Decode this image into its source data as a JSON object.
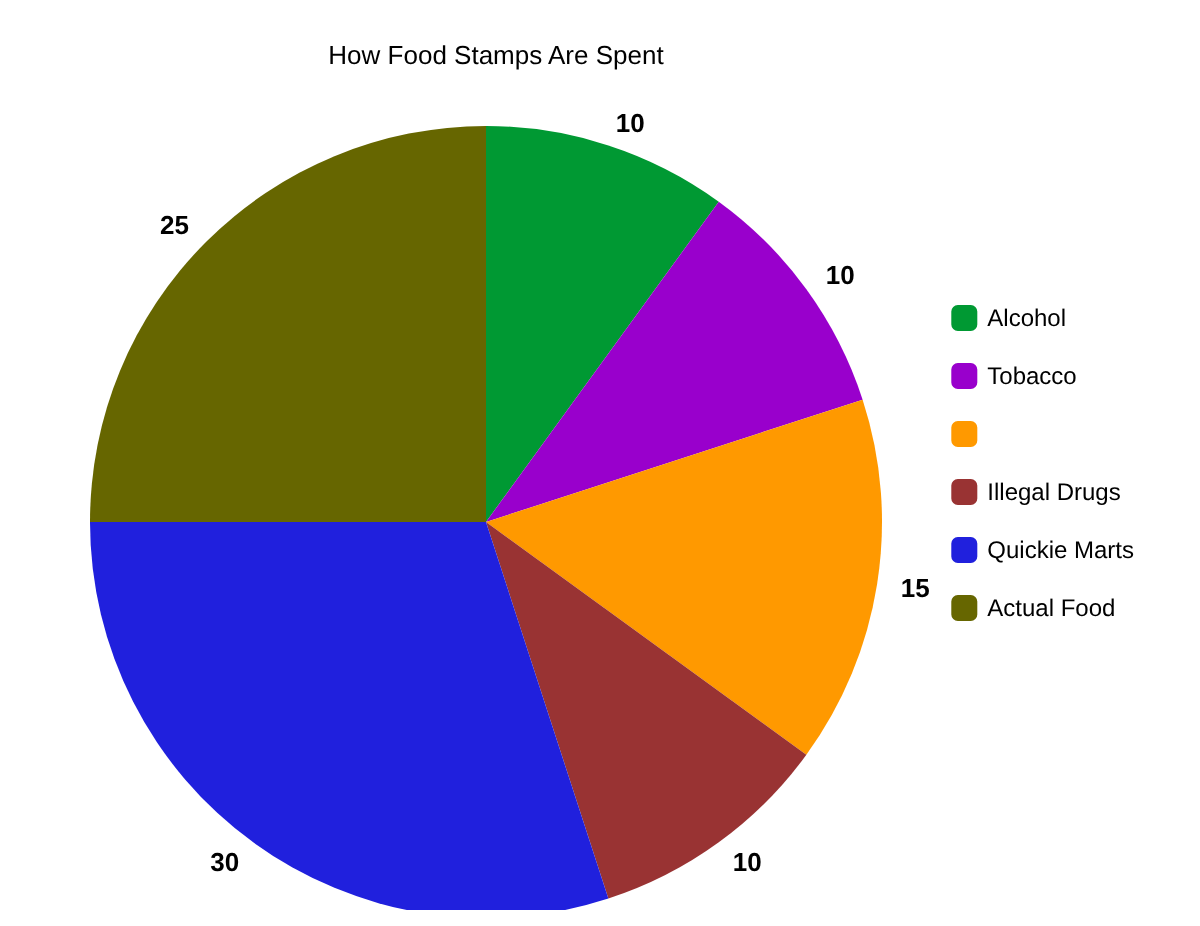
{
  "chart_data": {
    "type": "pie",
    "title": "How Food Stamps Are Spent",
    "categories": [
      "Alcohol",
      "Tobacco",
      null,
      "Illegal Drugs",
      "Quickie Marts",
      "Actual Food"
    ],
    "values": [
      10,
      10,
      15,
      10,
      30,
      25
    ],
    "colors": [
      "#009933",
      "#9900cc",
      "#ff9900",
      "#993333",
      "#2020dd",
      "#666600"
    ],
    "data_labels": true,
    "legend": "right"
  }
}
